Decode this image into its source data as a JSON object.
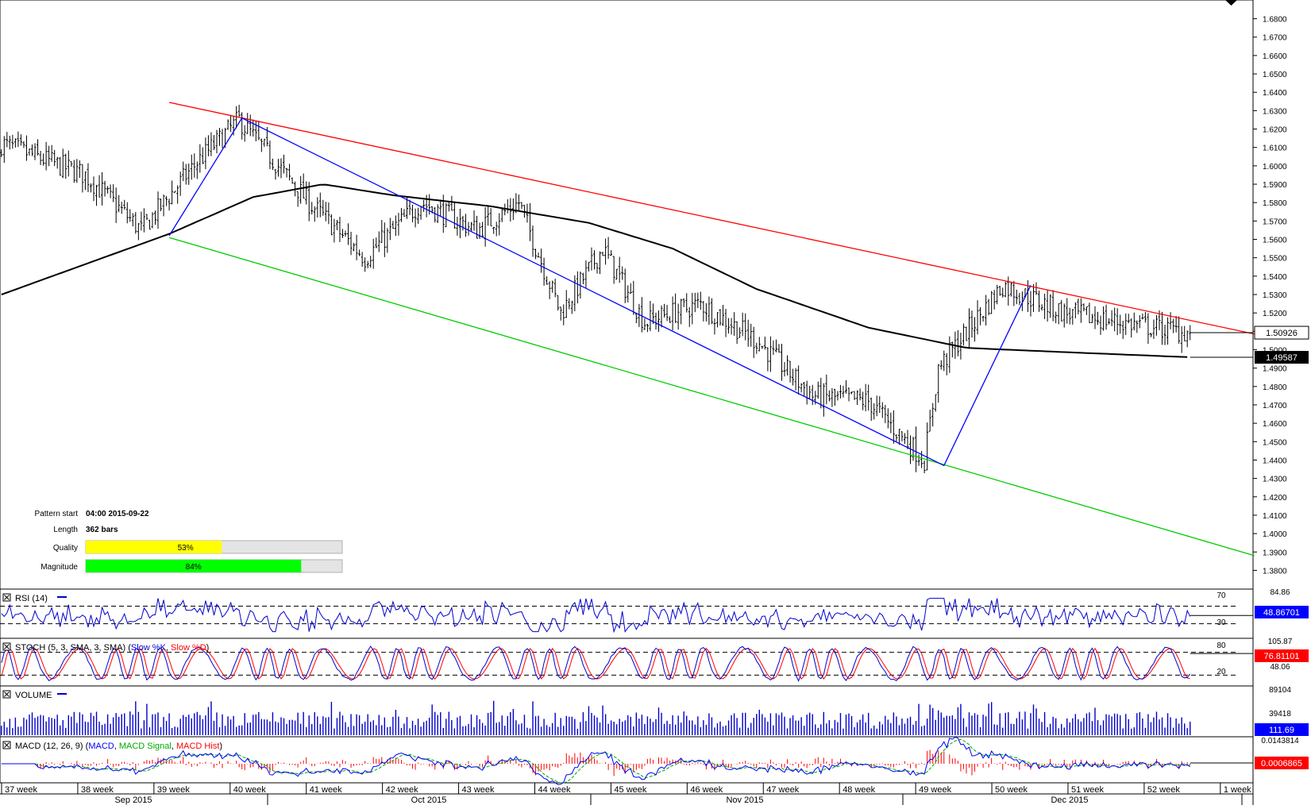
{
  "chart_data": {
    "type": "ohlc",
    "main": {
      "ylim": [
        1.375,
        1.685
      ],
      "yticks": [
        "1.6800",
        "1.6700",
        "1.6600",
        "1.6500",
        "1.6400",
        "1.6300",
        "1.6200",
        "1.6100",
        "1.6000",
        "1.5900",
        "1.5800",
        "1.5700",
        "1.5600",
        "1.5500",
        "1.5400",
        "1.5300",
        "1.5200",
        "1.5100",
        "1.5000",
        "1.4900",
        "1.4800",
        "1.4700",
        "1.4600",
        "1.4500",
        "1.4400",
        "1.4300",
        "1.4200",
        "1.4100",
        "1.4000",
        "1.3900",
        "1.3800"
      ],
      "last_price_label": "1.50926",
      "last_price": 1.50926,
      "ma_label": "1.49587",
      "ma_value": 1.49587,
      "anchor_points": [
        {
          "bar": 0,
          "close": 1.612
        },
        {
          "bar": 30,
          "close": 1.595
        },
        {
          "bar": 50,
          "close": 1.565
        },
        {
          "bar": 70,
          "close": 1.602
        },
        {
          "bar": 85,
          "close": 1.625
        },
        {
          "bar": 110,
          "close": 1.58
        },
        {
          "bar": 130,
          "close": 1.55
        },
        {
          "bar": 150,
          "close": 1.58
        },
        {
          "bar": 170,
          "close": 1.565
        },
        {
          "bar": 185,
          "close": 1.58
        },
        {
          "bar": 200,
          "close": 1.52
        },
        {
          "bar": 215,
          "close": 1.555
        },
        {
          "bar": 230,
          "close": 1.515
        },
        {
          "bar": 250,
          "close": 1.525
        },
        {
          "bar": 270,
          "close": 1.505
        },
        {
          "bar": 290,
          "close": 1.475
        },
        {
          "bar": 310,
          "close": 1.472
        },
        {
          "bar": 330,
          "close": 1.44
        },
        {
          "bar": 335,
          "close": 1.49
        },
        {
          "bar": 358,
          "close": 1.535
        },
        {
          "bar": 380,
          "close": 1.52
        },
        {
          "bar": 400,
          "close": 1.515
        },
        {
          "bar": 425,
          "close": 1.509
        }
      ],
      "ma_points": [
        {
          "bar": 0,
          "value": 1.53
        },
        {
          "bar": 60,
          "value": 1.563
        },
        {
          "bar": 90,
          "value": 1.583
        },
        {
          "bar": 115,
          "value": 1.59
        },
        {
          "bar": 140,
          "value": 1.584
        },
        {
          "bar": 175,
          "value": 1.578
        },
        {
          "bar": 210,
          "value": 1.569
        },
        {
          "bar": 240,
          "value": 1.555
        },
        {
          "bar": 270,
          "value": 1.533
        },
        {
          "bar": 310,
          "value": 1.512
        },
        {
          "bar": 345,
          "value": 1.501
        },
        {
          "bar": 375,
          "value": 1.499
        },
        {
          "bar": 425,
          "value": 1.4959
        }
      ],
      "trendlines": [
        {
          "name": "resistance",
          "color": "#ff0000",
          "from": {
            "bar": 60,
            "price": 1.6345
          },
          "to": {
            "bar": 448,
            "price": 1.5085
          }
        },
        {
          "name": "support",
          "color": "#00cc00",
          "from": {
            "bar": 60,
            "price": 1.561
          },
          "to": {
            "bar": 448,
            "price": 1.388
          }
        },
        {
          "name": "zigzag",
          "color": "#0000ff",
          "points": [
            {
              "bar": 60,
              "price": 1.562
            },
            {
              "bar": 86,
              "price": 1.626
            },
            {
              "bar": 337,
              "price": 1.437
            },
            {
              "bar": 368,
              "price": 1.535
            }
          ]
        }
      ]
    },
    "x_axis": {
      "weeks": [
        "37 week",
        "38 week",
        "39 week",
        "40 week",
        "41 week",
        "42 week",
        "43 week",
        "44 week",
        "45 week",
        "46 week",
        "47 week",
        "48 week",
        "49 week",
        "50 week",
        "51 week",
        "52 week",
        "1 week"
      ],
      "months": [
        "Sep 2015",
        "Oct 2015",
        "Nov 2015",
        "Dec 2015"
      ]
    },
    "pattern_info": {
      "pattern_start_label": "Pattern start",
      "pattern_start_value": "04:00 2015-09-22",
      "length_label": "Length",
      "length_value": "362 bars",
      "quality_label": "Quality",
      "quality_text": "53%",
      "quality": 0.53,
      "magnitude_label": "Magnitude",
      "magnitude_text": "84%",
      "magnitude": 0.84
    },
    "indicators": {
      "rsi": {
        "title": "RSI (14)",
        "level_high": "70",
        "level_low": "30",
        "scale_top": "84.86",
        "value_label": "48.86701",
        "value": 48.86701
      },
      "stoch": {
        "title_prefix": "STOCH (5, 3, SMA, 3, SMA) (",
        "slow_k": "Slow %K",
        "sep": ", ",
        "slow_d": "Slow %D",
        "title_suffix": ")",
        "level_high": "80",
        "level_low": "20",
        "scale_top": "105.87",
        "scale_mid": "48.06",
        "value_label": "76.81101",
        "value": 76.81101
      },
      "volume": {
        "title": "VOLUME",
        "scale_top": "89104",
        "scale_mid": "39418",
        "value_label": "111.69",
        "value": 111.69
      },
      "macd": {
        "title_prefix": "MACD (12, 26, 9) (",
        "macd": "MACD",
        "sep": ", ",
        "signal": "MACD Signal",
        "sep2": ", ",
        "hist": "MACD Hist",
        "title_suffix": ")",
        "scale_top": "0.0143814",
        "value_label": "0.0006865",
        "value": 0.0006865
      }
    },
    "colors": {
      "bars": "#000000",
      "ma": "#000000",
      "rsi_line": "#0000cc",
      "stoch_k": "#0000cc",
      "stoch_d": "#ff0000",
      "volume": "#0000cc",
      "macd": "#0000ff",
      "macd_signal": "#00aa00",
      "macd_hist": "#ff0000",
      "quality_bar": "#ffff00",
      "magnitude_bar": "#00ff00",
      "value_box_blue": "#0000ff",
      "value_box_red": "#ff0000",
      "value_box_black": "#000000"
    }
  }
}
